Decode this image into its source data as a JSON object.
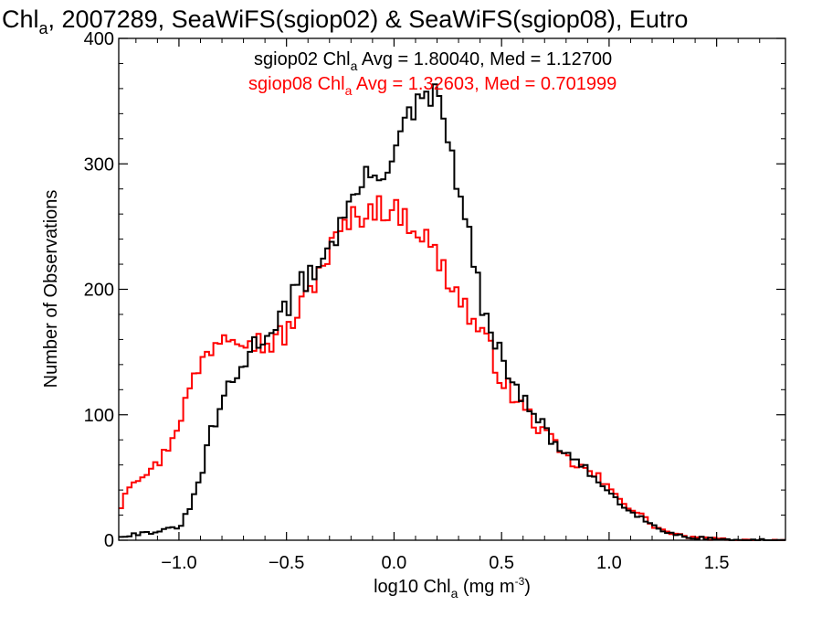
{
  "chart_data": {
    "type": "histogram",
    "title": "Chl",
    "title_sub": "a",
    "title_rest": ", 2007289, SeaWiFS(sgiop02) & SeaWiFS(sgiop08), Eutro",
    "xlabel": "log10 Chl",
    "xlabel_sub": "a",
    "xlabel_units": " (mg m",
    "xlabel_sup": "-3",
    "xlabel_close": ")",
    "ylabel": "Number of Observations",
    "xlim": [
      -1.28,
      1.82
    ],
    "ylim": [
      0,
      400
    ],
    "x_ticks": [
      -1.0,
      -0.5,
      0.0,
      0.5,
      1.0,
      1.5
    ],
    "x_tick_labels": [
      "−1.0",
      "−0.5",
      "0.0",
      "0.5",
      "1.0",
      "1.5"
    ],
    "y_ticks": [
      0,
      100,
      200,
      300,
      400
    ],
    "y_tick_labels": [
      "0",
      "100",
      "200",
      "300",
      "400"
    ],
    "grid": false,
    "bin_width": 0.02,
    "annotations": [
      {
        "name": "sgiop02",
        "color": "#000000",
        "pre": "sgiop02 Chl",
        "sub": "a",
        "post": " Avg = 1.80040, Med = 1.12700"
      },
      {
        "name": "sgiop08",
        "color": "#ff0000",
        "pre": "sgiop08 Chl",
        "sub": "a",
        "post": " Avg = 1.32603, Med = 0.701999"
      }
    ],
    "series": [
      {
        "name": "sgiop02",
        "color": "#000000",
        "anchors_x": [
          -1.28,
          -1.2,
          -1.1,
          -1.0,
          -0.95,
          -0.9,
          -0.85,
          -0.8,
          -0.75,
          -0.7,
          -0.65,
          -0.6,
          -0.55,
          -0.5,
          -0.45,
          -0.4,
          -0.35,
          -0.3,
          -0.25,
          -0.2,
          -0.15,
          -0.1,
          -0.05,
          0.0,
          0.05,
          0.1,
          0.15,
          0.2,
          0.22,
          0.25,
          0.3,
          0.35,
          0.4,
          0.45,
          0.5,
          0.55,
          0.6,
          0.65,
          0.7,
          0.75,
          0.8,
          0.85,
          0.9,
          0.95,
          1.0,
          1.05,
          1.1,
          1.15,
          1.2,
          1.25,
          1.3,
          1.35,
          1.4,
          1.5,
          1.6,
          1.7,
          1.82
        ],
        "anchors_y": [
          3,
          5,
          7,
          10,
          25,
          50,
          85,
          110,
          125,
          140,
          155,
          165,
          175,
          185,
          200,
          210,
          220,
          235,
          250,
          270,
          285,
          290,
          295,
          310,
          330,
          345,
          350,
          355,
          345,
          320,
          280,
          240,
          195,
          160,
          145,
          130,
          110,
          100,
          90,
          75,
          70,
          60,
          55,
          45,
          40,
          30,
          25,
          18,
          12,
          8,
          5,
          3,
          2,
          1,
          0,
          0,
          0
        ]
      },
      {
        "name": "sgiop08",
        "color": "#ff0000",
        "anchors_x": [
          -1.28,
          -1.25,
          -1.2,
          -1.15,
          -1.1,
          -1.05,
          -1.0,
          -0.95,
          -0.9,
          -0.85,
          -0.8,
          -0.75,
          -0.7,
          -0.65,
          -0.6,
          -0.55,
          -0.5,
          -0.45,
          -0.4,
          -0.35,
          -0.3,
          -0.25,
          -0.2,
          -0.15,
          -0.1,
          -0.05,
          0.0,
          0.05,
          0.1,
          0.15,
          0.2,
          0.25,
          0.3,
          0.35,
          0.4,
          0.45,
          0.5,
          0.55,
          0.6,
          0.65,
          0.7,
          0.75,
          0.8,
          0.85,
          0.9,
          0.95,
          1.0,
          1.05,
          1.1,
          1.15,
          1.2,
          1.25,
          1.3,
          1.35,
          1.4,
          1.5,
          1.6,
          1.7,
          1.82
        ],
        "anchors_y": [
          20,
          40,
          50,
          55,
          60,
          75,
          95,
          120,
          140,
          155,
          165,
          168,
          165,
          160,
          155,
          160,
          165,
          180,
          195,
          215,
          230,
          245,
          255,
          260,
          265,
          265,
          262,
          258,
          250,
          240,
          225,
          210,
          195,
          180,
          165,
          150,
          130,
          115,
          105,
          95,
          85,
          75,
          65,
          60,
          55,
          50,
          40,
          35,
          25,
          20,
          12,
          8,
          5,
          3,
          2,
          1,
          0,
          0,
          0
        ]
      }
    ]
  }
}
